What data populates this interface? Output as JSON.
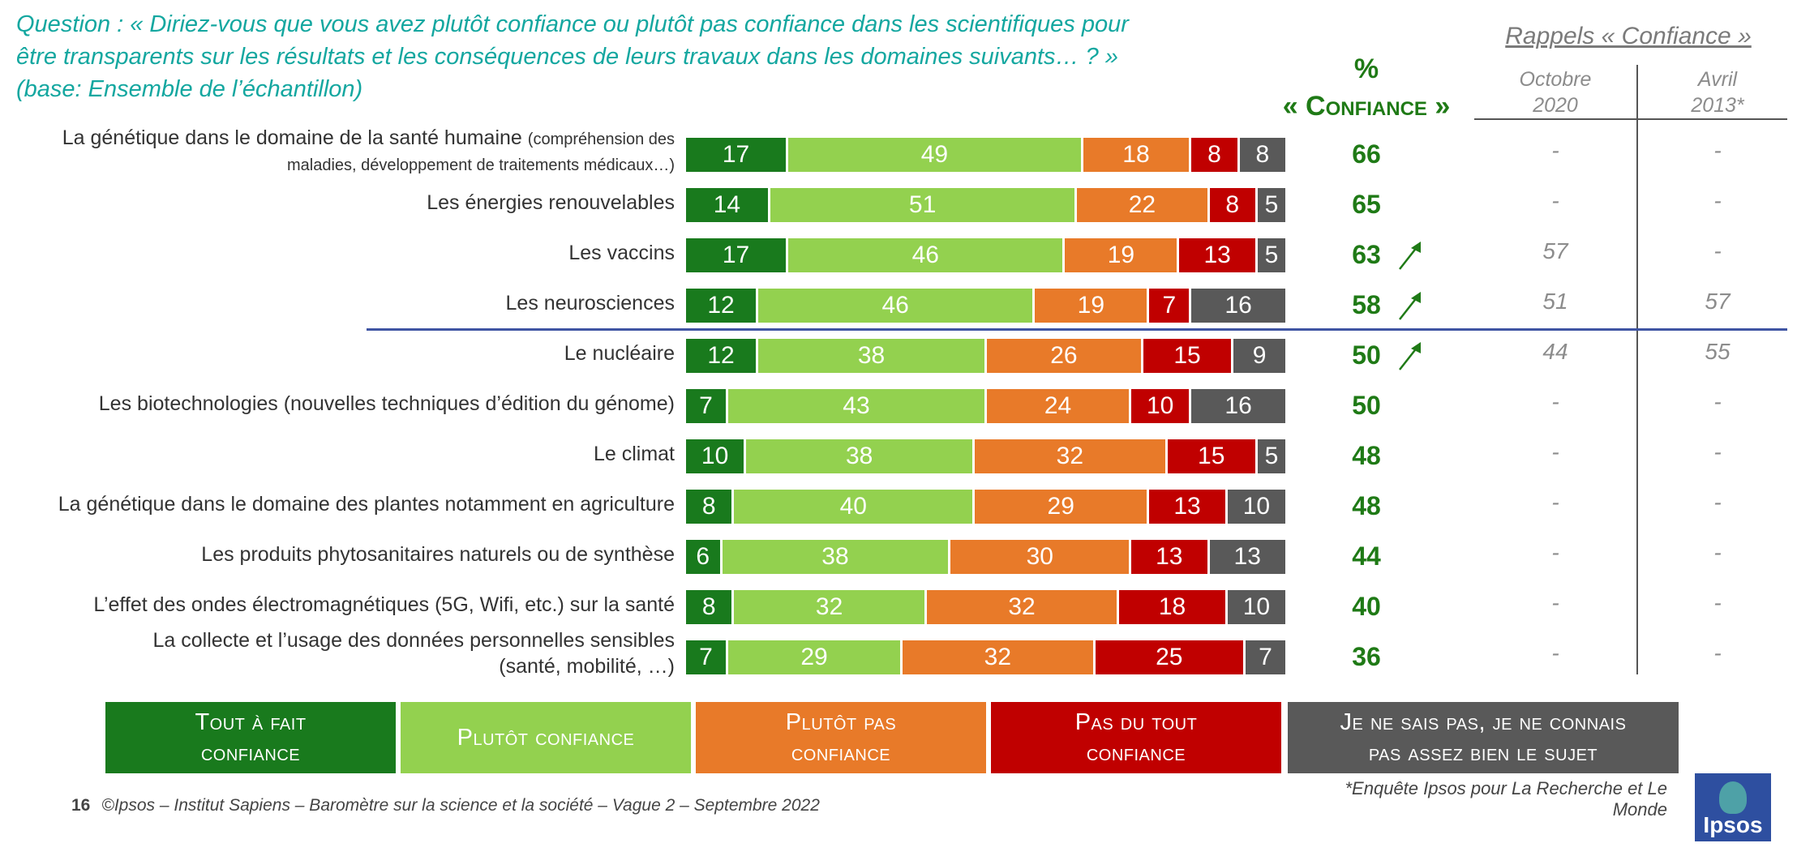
{
  "question": {
    "line1": "Question : « Diriez-vous que vous avez plutôt confiance ou plutôt pas confiance dans les scientifiques pour",
    "line2": "être transparents sur les résultats et les conséquences de leurs travaux dans les domaines suivants… ?  »",
    "line3": "(base: Ensemble de l’échantillon)"
  },
  "header": {
    "pct": "%",
    "confiance": "« Confiance »",
    "recall_title": "Rappels « Confiance »",
    "col_oct_line1": "Octobre",
    "col_oct_line2": "2020",
    "col_apr_line1": "Avril",
    "col_apr_line2": "2013*"
  },
  "colors": {
    "tout_a_fait": "#197a1d",
    "plutot": "#93d14f",
    "plutot_pas": "#e87a29",
    "pas_du_tout": "#c00000",
    "nsp": "#595959",
    "accent": "#1f7a16",
    "question": "#14a7a0"
  },
  "chart_data": {
    "type": "bar",
    "orientation": "horizontal",
    "stacked": true,
    "categories": [
      "La génétique dans le domaine de la santé humaine (compréhension des maladies, développement de traitements médicaux…)",
      "Les énergies renouvelables",
      "Les vaccins",
      "Les neurosciences",
      "Le nucléaire",
      "Les biotechnologies (nouvelles techniques d’édition du génome)",
      "Le climat",
      "La génétique dans le domaine des plantes notamment en agriculture",
      "Les produits phytosanitaires naturels ou de synthèse",
      "L’effet des ondes électromagnétiques (5G, Wifi, etc.) sur la santé",
      "La collecte et l’usage des données personnelles sensibles (santé, mobilité, …)"
    ],
    "series": [
      {
        "name": "Tout à fait confiance",
        "values": [
          17,
          14,
          17,
          12,
          12,
          7,
          10,
          8,
          6,
          8,
          7
        ]
      },
      {
        "name": "Plutôt confiance",
        "values": [
          49,
          51,
          46,
          46,
          38,
          43,
          38,
          40,
          38,
          32,
          29
        ]
      },
      {
        "name": "Plutôt pas confiance",
        "values": [
          18,
          22,
          19,
          19,
          26,
          24,
          32,
          29,
          30,
          32,
          32
        ]
      },
      {
        "name": "Pas du tout confiance",
        "values": [
          8,
          8,
          13,
          7,
          15,
          10,
          15,
          13,
          13,
          18,
          25
        ]
      },
      {
        "name": "Je ne sais pas, je ne connais pas assez bien le sujet",
        "values": [
          8,
          5,
          5,
          16,
          9,
          16,
          5,
          10,
          13,
          10,
          7
        ]
      }
    ],
    "confiance_pct": [
      66,
      65,
      63,
      58,
      50,
      50,
      48,
      48,
      44,
      40,
      36
    ],
    "trend_up": [
      false,
      false,
      true,
      true,
      true,
      false,
      false,
      false,
      false,
      false,
      false
    ],
    "recall_octobre_2020": [
      "-",
      "-",
      "57",
      "51",
      "44",
      "-",
      "-",
      "-",
      "-",
      "-",
      "-"
    ],
    "recall_avril_2013": [
      "-",
      "-",
      "-",
      "57",
      "55",
      "-",
      "-",
      "-",
      "-",
      "-",
      "-"
    ],
    "xlim": [
      0,
      100
    ],
    "legend_position": "bottom"
  },
  "rows": [
    {
      "label_main": "La génétique dans le domaine de la santé humaine ",
      "label_small": "(compréhension des",
      "label_line2": "maladies, développement de traitements médicaux…)"
    },
    {
      "label_main": "Les énergies renouvelables",
      "label_small": "",
      "label_line2": ""
    },
    {
      "label_main": "Les vaccins",
      "label_small": "",
      "label_line2": ""
    },
    {
      "label_main": "Les neurosciences",
      "label_small": "",
      "label_line2": ""
    },
    {
      "label_main": "Le nucléaire",
      "label_small": "",
      "label_line2": ""
    },
    {
      "label_main": "Les biotechnologies (nouvelles techniques d’édition du génome)",
      "label_small": "",
      "label_line2": ""
    },
    {
      "label_main": "Le climat",
      "label_small": "",
      "label_line2": ""
    },
    {
      "label_main": "La génétique dans le domaine des plantes notamment en agriculture",
      "label_small": "",
      "label_line2": ""
    },
    {
      "label_main": "Les produits phytosanitaires naturels ou de synthèse",
      "label_small": "",
      "label_line2": ""
    },
    {
      "label_main": "L’effet des ondes électromagnétiques (5G, Wifi, etc.) sur la santé",
      "label_small": "",
      "label_line2": ""
    },
    {
      "label_main": "La collecte et l’usage des données personnelles sensibles",
      "label_small": "",
      "label_line2": "(santé, mobilité, …)"
    }
  ],
  "legend": {
    "tout_a_fait_1": "Tout à fait",
    "tout_a_fait_2": "confiance",
    "plutot": "Plutôt confiance",
    "plutot_pas_1": "Plutôt pas",
    "plutot_pas_2": "confiance",
    "pas_du_tout_1": "Pas du tout",
    "pas_du_tout_2": "confiance",
    "nsp_1": "Je ne sais pas, je ne connais",
    "nsp_2": "pas assez bien le sujet"
  },
  "footer": {
    "page_number": "16",
    "text": "©Ipsos – Institut Sapiens – Baromètre sur la science et la société – Vague 2 – Septembre 2022",
    "footnote": "*Enquête Ipsos pour La Recherche et Le Monde",
    "logo_text": "Ipsos"
  }
}
